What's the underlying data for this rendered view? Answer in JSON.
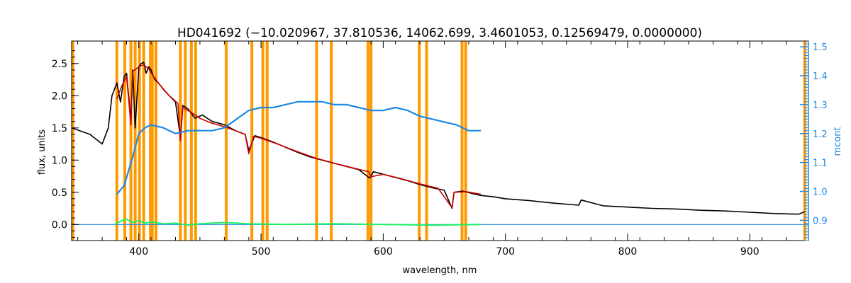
{
  "chart_data": {
    "type": "line",
    "title": "HD041692    (−10.020967, 37.810536, 14062.699, 3.4601053, 0.12569479, 0.0000000)",
    "xlabel": "wavelength, nm",
    "ylabel": "flux, units",
    "y2label": "mcont",
    "xlim": [
      345,
      948
    ],
    "ylim": [
      -0.25,
      2.85
    ],
    "y2lim": [
      0.83,
      1.52
    ],
    "xticks": [
      400,
      500,
      600,
      700,
      800,
      900
    ],
    "yticks": [
      0.0,
      0.5,
      1.0,
      1.5,
      2.0,
      2.5
    ],
    "y2ticks": [
      0.9,
      1.0,
      1.1,
      1.2,
      1.3,
      1.4,
      1.5
    ],
    "xtick_labels": [
      "400",
      "500",
      "600",
      "700",
      "800",
      "900"
    ],
    "ytick_labels": [
      "0.0",
      "0.5",
      "1.0",
      "1.5",
      "2.0",
      "2.5"
    ],
    "y2tick_labels": [
      "0.9",
      "1.0",
      "1.1",
      "1.2",
      "1.3",
      "1.4",
      "1.5"
    ],
    "colors": {
      "observed": "#000000",
      "model": "#cc0000",
      "residual": "#22ee66",
      "mcont": "#1e88e5",
      "masked_band": "#ff9900",
      "axis": "#000000",
      "right_axis": "#1e88e5"
    },
    "masked_bands": [
      346,
      382,
      388.5,
      393.5,
      397,
      400.5,
      404,
      409.5,
      411,
      414,
      434,
      438,
      443,
      446.5,
      471.5,
      492.5,
      501.5,
      505,
      545.5,
      557.5,
      587.5,
      590,
      629.5,
      635.5,
      664.5,
      667.5,
      945
    ],
    "series": [
      {
        "key": "observed",
        "axis": "left",
        "x": [
          345,
          360,
          370,
          375,
          378,
          382,
          385,
          388,
          390,
          393.5,
          395,
          397,
          400,
          402,
          404,
          406,
          408,
          410,
          413,
          416,
          420,
          425,
          430,
          434,
          436,
          440,
          446,
          452,
          460,
          470,
          480,
          487,
          490,
          495,
          500,
          510,
          520,
          530,
          540,
          550,
          560,
          570,
          580,
          589,
          592,
          600,
          610,
          620,
          630,
          640,
          650,
          656.3,
          658,
          665,
          675,
          680,
          690,
          700,
          720,
          740,
          760,
          762,
          780,
          800,
          820,
          840,
          860,
          880,
          900,
          920,
          940,
          945
        ],
        "y": [
          1.5,
          1.4,
          1.25,
          1.5,
          2.0,
          2.2,
          1.9,
          2.3,
          2.35,
          1.6,
          2.4,
          1.5,
          2.45,
          2.5,
          2.52,
          2.35,
          2.45,
          2.4,
          2.25,
          2.2,
          2.1,
          2.0,
          1.9,
          1.35,
          1.85,
          1.8,
          1.65,
          1.7,
          1.6,
          1.55,
          1.45,
          1.4,
          1.15,
          1.38,
          1.35,
          1.28,
          1.2,
          1.12,
          1.05,
          1.0,
          0.95,
          0.9,
          0.85,
          0.72,
          0.82,
          0.78,
          0.73,
          0.68,
          0.62,
          0.57,
          0.53,
          0.25,
          0.5,
          0.52,
          0.47,
          0.45,
          0.43,
          0.4,
          0.37,
          0.33,
          0.3,
          0.38,
          0.29,
          0.27,
          0.25,
          0.24,
          0.22,
          0.21,
          0.19,
          0.17,
          0.16,
          0.2
        ]
      },
      {
        "key": "model",
        "axis": "left",
        "x": [
          382,
          386,
          390,
          393.5,
          395,
          398,
          401,
          404,
          408,
          412,
          418,
          425,
          432,
          434,
          436,
          442,
          450,
          460,
          470,
          480,
          487,
          490,
          494,
          500,
          515,
          530,
          545,
          560,
          575,
          588,
          590,
          600,
          615,
          630,
          645,
          656.3,
          658,
          668,
          680
        ],
        "y": [
          1.95,
          2.15,
          2.3,
          1.55,
          2.38,
          2.42,
          2.46,
          2.48,
          2.42,
          2.3,
          2.15,
          2.0,
          1.88,
          1.3,
          1.82,
          1.75,
          1.65,
          1.57,
          1.52,
          1.45,
          1.4,
          1.1,
          1.37,
          1.34,
          1.24,
          1.13,
          1.03,
          0.95,
          0.88,
          0.82,
          0.74,
          0.78,
          0.71,
          0.63,
          0.56,
          0.26,
          0.5,
          0.51,
          0.47
        ]
      },
      {
        "key": "residual",
        "axis": "left",
        "x": [
          380,
          385,
          390,
          395,
          400,
          405,
          410,
          420,
          430,
          440,
          450,
          470,
          490,
          520,
          560,
          600,
          640,
          680
        ],
        "y": [
          0.0,
          0.05,
          0.08,
          0.03,
          0.06,
          0.02,
          0.04,
          0.01,
          0.02,
          -0.01,
          0.01,
          0.03,
          0.01,
          0.0,
          0.01,
          0.0,
          -0.01,
          0.0
        ]
      },
      {
        "key": "mcont",
        "axis": "right",
        "x": [
          382,
          388,
          395,
          400,
          405,
          410,
          420,
          430,
          440,
          450,
          460,
          470,
          480,
          490,
          500,
          510,
          520,
          530,
          540,
          550,
          560,
          570,
          580,
          590,
          600,
          610,
          620,
          630,
          640,
          650,
          660,
          670,
          680
        ],
        "y": [
          0.99,
          1.02,
          1.12,
          1.2,
          1.22,
          1.23,
          1.22,
          1.2,
          1.21,
          1.21,
          1.21,
          1.22,
          1.25,
          1.28,
          1.29,
          1.29,
          1.3,
          1.31,
          1.31,
          1.31,
          1.3,
          1.3,
          1.29,
          1.28,
          1.28,
          1.29,
          1.28,
          1.26,
          1.25,
          1.24,
          1.23,
          1.21,
          1.21
        ]
      },
      {
        "key": "mcont_baseline",
        "axis": "left",
        "x": [
          345,
          948
        ],
        "y": [
          0.0,
          0.0
        ]
      }
    ]
  }
}
